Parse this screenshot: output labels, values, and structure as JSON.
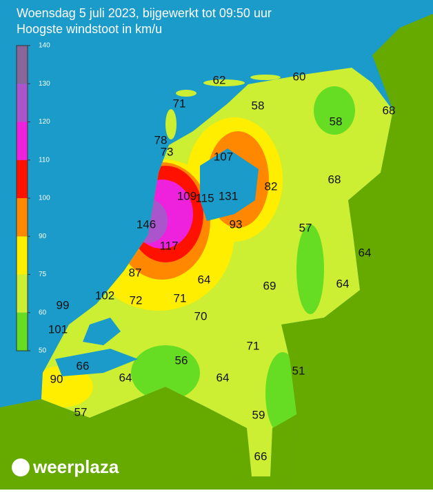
{
  "title": "Woensdag 5 juli 2023, bijgewerkt tot 09:50 uur",
  "subtitle": "Hoogste windstoot in km/u",
  "legend": {
    "ticks": [
      50,
      60,
      75,
      90,
      100,
      110,
      120,
      130,
      140
    ],
    "colors": [
      "#66dd22",
      "#ccee33",
      "#ffee00",
      "#ff8800",
      "#ff1100",
      "#ee22dd",
      "#aa55cc",
      "#886699"
    ]
  },
  "stations": [
    62,
    60,
    71,
    58,
    58,
    68,
    78,
    73,
    107,
    82,
    68,
    109,
    115,
    131,
    146,
    93,
    57,
    117,
    64,
    87,
    64,
    69,
    64,
    102,
    72,
    71,
    99,
    70,
    101,
    71,
    56,
    66,
    51,
    90,
    64,
    64,
    59,
    57,
    66
  ],
  "logo": "weerplaza"
}
